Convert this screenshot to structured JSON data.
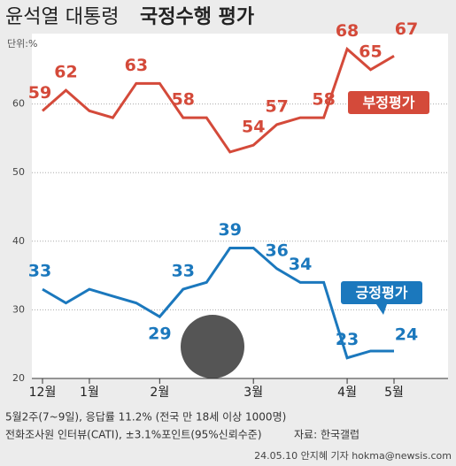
{
  "chart_data": {
    "type": "line",
    "title": {
      "plain": "윤석열 대통령",
      "bold": "국정수행 평가"
    },
    "unit_label": "단위:%",
    "categories": [
      "12월",
      null,
      "1월",
      null,
      null,
      "2월",
      null,
      null,
      null,
      "3월",
      null,
      null,
      null,
      "4월",
      null,
      "5월"
    ],
    "series": [
      {
        "name": "부정평가",
        "color": "#d44a3a",
        "values": [
          59,
          62,
          59,
          58,
          63,
          63,
          58,
          58,
          53,
          54,
          57,
          58,
          58,
          68,
          65,
          67
        ],
        "value_labels": [
          59,
          62,
          null,
          null,
          63,
          null,
          58,
          null,
          null,
          54,
          57,
          null,
          58,
          68,
          65,
          67
        ]
      },
      {
        "name": "긍정평가",
        "color": "#1b78bd",
        "values": [
          33,
          31,
          33,
          32,
          31,
          29,
          33,
          34,
          39,
          39,
          36,
          34,
          34,
          23,
          24,
          24
        ],
        "value_labels": [
          33,
          null,
          null,
          null,
          null,
          29,
          33,
          null,
          39,
          null,
          36,
          34,
          null,
          23,
          null,
          24
        ]
      }
    ],
    "ylim": [
      20,
      70
    ],
    "yticks": [
      20,
      30,
      40,
      50,
      60
    ],
    "grid": true,
    "notes": [
      "5월2주(7~9일), 응답률 11.2% (전국 만 18세 이상 1000명)",
      "전화조사원 인터뷰(CATI), ±3.1%포인트(95%신뢰수준)",
      "자료: 한국갤럽"
    ],
    "credit": "24.05.10 안지혜 기자 hokma@newsis.com"
  }
}
